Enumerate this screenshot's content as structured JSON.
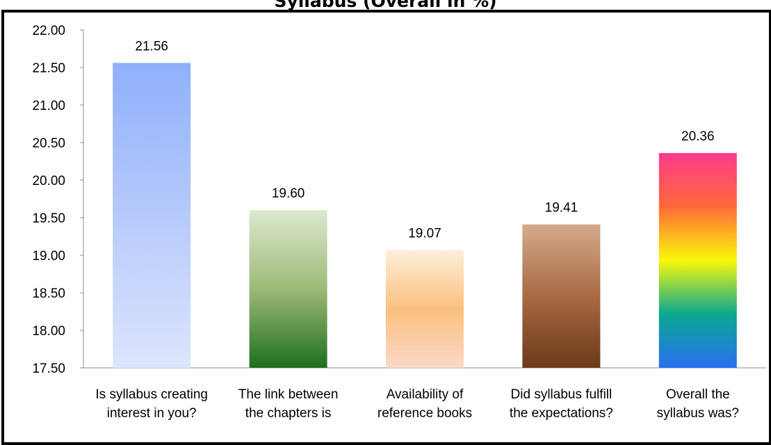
{
  "chart_data": {
    "type": "bar",
    "title": "Syllabus (Overall in %)",
    "xlabel": "",
    "ylabel": "",
    "ylim": [
      17.5,
      22.0
    ],
    "yticks": [
      "22.00",
      "21.50",
      "21.00",
      "20.50",
      "20.00",
      "19.50",
      "19.00",
      "18.50",
      "18.00",
      "17.50"
    ],
    "categories": [
      [
        "Is syllabus creating",
        "interest in you?"
      ],
      [
        "The link between",
        "the chapters is"
      ],
      [
        "Availability of",
        "reference books"
      ],
      [
        "Did syllabus fulfill",
        "the expectations?"
      ],
      [
        "Overall the",
        "syllabus was?"
      ]
    ],
    "values": [
      21.56,
      19.6,
      19.07,
      19.41,
      20.36
    ],
    "value_labels": [
      "21.56",
      "19.60",
      "19.07",
      "19.41",
      "20.36"
    ],
    "grid": false,
    "legend": "none",
    "bar_fills": [
      [
        "#8fb0fb",
        "#b6cafb",
        "#dce5fc"
      ],
      [
        "#dde9cf",
        "#9cba78",
        "#1f6f1f"
      ],
      [
        "#fdefdc",
        "#fbc07e",
        "#fbd8c8"
      ],
      [
        "#d3ab8d",
        "#a86a43",
        "#6b3a18"
      ],
      [
        "#ff3a8c",
        "#ff6a3a",
        "#f8f80a",
        "#0aa890",
        "#2870f0"
      ]
    ]
  }
}
